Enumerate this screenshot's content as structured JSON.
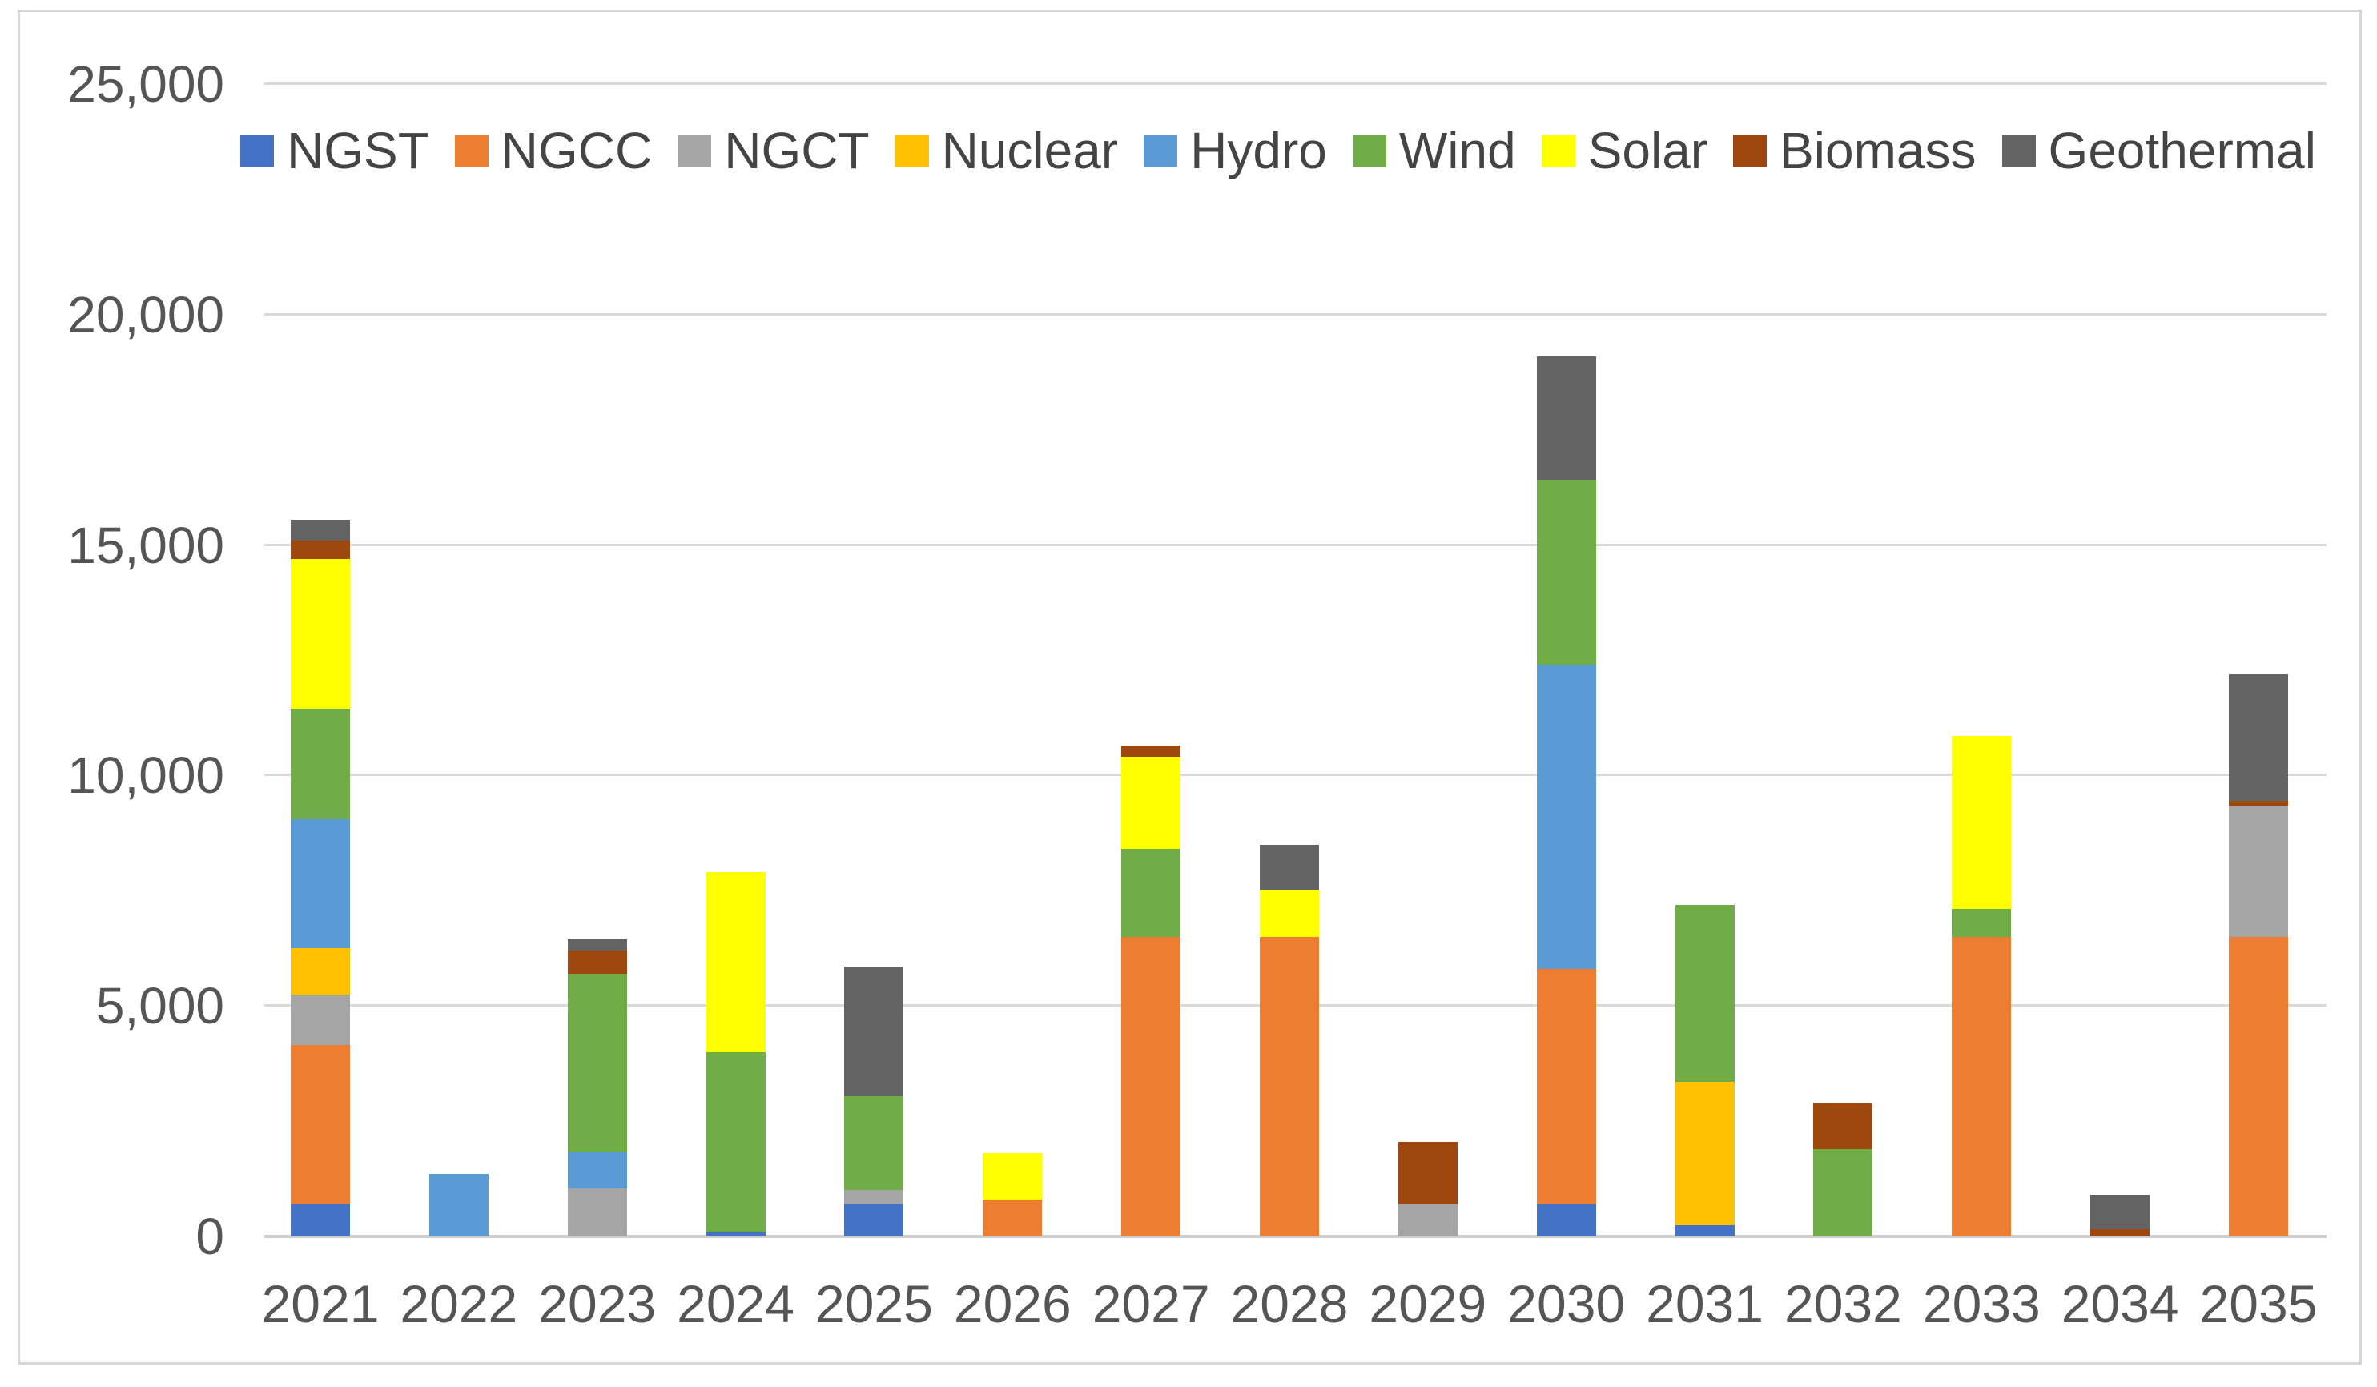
{
  "chart": {
    "background_color": "#FFFFFF",
    "border_color": "#D6D6D6",
    "gridline_color": "#D9D9D9",
    "axis_line_color": "#CFCFCF",
    "tick_label_color": "#555555",
    "legend_label_color": "#444444"
  },
  "chart_data": {
    "type": "bar",
    "stacked": true,
    "title": "",
    "xlabel": "",
    "ylabel": "",
    "grid": true,
    "legend_position": "top",
    "ylim": [
      0,
      25000
    ],
    "ytick_values": [
      0,
      5000,
      10000,
      15000,
      20000,
      25000
    ],
    "ytick_labels": [
      "0",
      "5,000",
      "10,000",
      "15,000",
      "20,000",
      "25,000"
    ],
    "categories": [
      "2021",
      "2022",
      "2023",
      "2024",
      "2025",
      "2026",
      "2027",
      "2028",
      "2029",
      "2030",
      "2031",
      "2032",
      "2033",
      "2034",
      "2035"
    ],
    "series": [
      {
        "name": "NGST",
        "color": "#4472C4",
        "values": [
          700,
          0,
          0,
          100,
          700,
          0,
          0,
          0,
          0,
          700,
          250,
          0,
          0,
          0,
          0
        ]
      },
      {
        "name": "NGCC",
        "color": "#ED7D31",
        "values": [
          3450,
          0,
          0,
          0,
          0,
          800,
          6500,
          6500,
          0,
          5100,
          0,
          0,
          6500,
          0,
          6500
        ]
      },
      {
        "name": "NGCT",
        "color": "#A5A5A5",
        "values": [
          1100,
          0,
          1050,
          0,
          300,
          0,
          0,
          0,
          700,
          0,
          0,
          0,
          0,
          0,
          2850
        ]
      },
      {
        "name": "Nuclear",
        "color": "#FFC000",
        "values": [
          1000,
          0,
          0,
          0,
          0,
          0,
          0,
          0,
          0,
          0,
          3100,
          0,
          0,
          0,
          0
        ]
      },
      {
        "name": "Hydro",
        "color": "#5B9BD5",
        "values": [
          2800,
          1350,
          800,
          0,
          0,
          0,
          0,
          0,
          0,
          6600,
          0,
          0,
          0,
          0,
          0
        ]
      },
      {
        "name": "Wind",
        "color": "#70AD47",
        "values": [
          2400,
          0,
          3850,
          3900,
          2050,
          0,
          1900,
          0,
          0,
          4000,
          3850,
          1900,
          600,
          0,
          0
        ]
      },
      {
        "name": "Solar",
        "color": "#FFFF00",
        "values": [
          3250,
          0,
          0,
          3900,
          0,
          1000,
          2000,
          1000,
          0,
          0,
          0,
          0,
          3750,
          0,
          0
        ]
      },
      {
        "name": "Biomass",
        "color": "#9E480E",
        "values": [
          400,
          0,
          500,
          0,
          0,
          0,
          250,
          0,
          1350,
          0,
          0,
          1000,
          0,
          150,
          100
        ]
      },
      {
        "name": "Geothermal",
        "color": "#636363",
        "values": [
          450,
          0,
          250,
          0,
          2800,
          0,
          0,
          1000,
          0,
          2700,
          0,
          0,
          0,
          750,
          2750
        ]
      }
    ],
    "totals_by_year": [
      15550,
      1350,
      6450,
      7900,
      5850,
      1800,
      10650,
      8500,
      2050,
      19100,
      7200,
      2900,
      10850,
      900,
      12200
    ]
  }
}
